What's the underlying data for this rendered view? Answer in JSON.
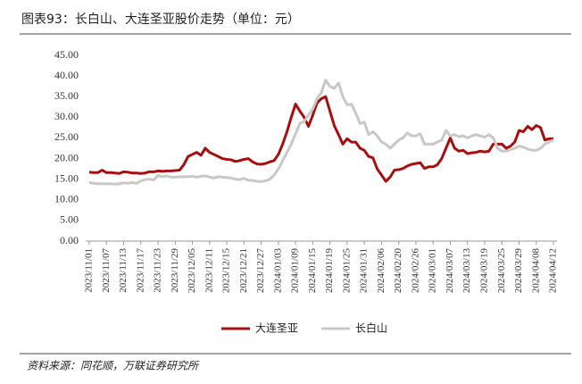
{
  "chart_data": {
    "type": "line",
    "title": "图表93：长白山、大连圣亚股价走势（单位：元）",
    "source": "资料来源：同花顺，万联证券研究所",
    "categories": [
      "2023/11/01",
      null,
      null,
      null,
      "2023/11/07",
      null,
      null,
      null,
      "2023/11/13",
      null,
      null,
      null,
      "2023/11/17",
      null,
      null,
      null,
      "2023/11/23",
      null,
      null,
      null,
      "2023/11/29",
      null,
      null,
      null,
      "2023/12/05",
      null,
      null,
      null,
      "2023/12/11",
      null,
      null,
      null,
      "2023/12/15",
      null,
      null,
      null,
      "2023/12/21",
      null,
      null,
      null,
      "2023/12/27",
      null,
      null,
      null,
      "2024/01/03",
      null,
      null,
      null,
      "2024/01/09",
      null,
      null,
      null,
      "2024/01/15",
      null,
      null,
      null,
      "2024/01/19",
      null,
      null,
      null,
      "2024/01/25",
      null,
      null,
      null,
      "2024/01/31",
      null,
      null,
      null,
      "2024/02/06",
      null,
      null,
      null,
      "2024/02/20",
      null,
      null,
      null,
      "2024/02/26",
      null,
      null,
      null,
      "2024/03/01",
      null,
      null,
      null,
      "2024/03/07",
      null,
      null,
      null,
      "2024/03/13",
      null,
      null,
      null,
      "2024/03/19",
      null,
      null,
      null,
      "2024/03/25",
      null,
      null,
      null,
      "2024/03/29",
      null,
      null,
      null,
      "2024/04/08",
      null,
      null,
      null,
      "2024/04/12"
    ],
    "series": [
      {
        "name": "大连圣亚",
        "color": "#a50f0f",
        "values": [
          16.7,
          16.6,
          16.6,
          17.2,
          16.6,
          16.6,
          16.5,
          16.4,
          16.8,
          16.7,
          16.5,
          16.5,
          16.4,
          16.5,
          16.8,
          16.8,
          17.0,
          16.9,
          17.0,
          17.0,
          17.1,
          17.2,
          18.5,
          20.5,
          21.0,
          21.5,
          20.8,
          22.5,
          21.5,
          21.0,
          20.5,
          20.0,
          19.8,
          19.7,
          19.3,
          19.5,
          19.8,
          20.0,
          19.2,
          18.7,
          18.6,
          18.8,
          19.2,
          19.5,
          21.0,
          23.5,
          26.5,
          30.0,
          33.2,
          31.5,
          30.0,
          27.8,
          30.5,
          33.5,
          34.5,
          35.0,
          31.5,
          28.0,
          25.8,
          23.5,
          24.8,
          24.0,
          24.0,
          22.5,
          22.0,
          20.5,
          20.2,
          17.5,
          16.0,
          14.5,
          15.5,
          17.2,
          17.3,
          17.6,
          18.2,
          18.6,
          18.8,
          19.0,
          17.6,
          18.0,
          18.0,
          18.5,
          20.0,
          22.5,
          25.0,
          22.5,
          21.8,
          22.0,
          21.2,
          21.4,
          21.5,
          21.8,
          21.6,
          21.8,
          23.5,
          23.5,
          23.5,
          22.5,
          23.0,
          24.0,
          26.8,
          26.5,
          27.8,
          27.0,
          28.0,
          27.5,
          24.5,
          24.8,
          24.8
        ]
      },
      {
        "name": "长白山",
        "color": "#c8c8c8",
        "values": [
          14.2,
          14.0,
          13.9,
          13.9,
          13.9,
          13.9,
          13.8,
          13.9,
          14.1,
          14.0,
          14.2,
          14.0,
          14.6,
          14.9,
          15.0,
          14.8,
          15.9,
          15.6,
          15.8,
          15.5,
          15.5,
          15.6,
          15.6,
          15.6,
          15.7,
          15.5,
          15.7,
          15.8,
          15.5,
          15.3,
          15.6,
          15.5,
          15.4,
          15.3,
          15.0,
          14.9,
          15.2,
          14.7,
          14.7,
          14.5,
          14.4,
          14.6,
          15.0,
          16.0,
          17.5,
          19.5,
          21.5,
          23.5,
          26.0,
          28.5,
          29.0,
          30.5,
          32.0,
          34.5,
          36.0,
          39.0,
          37.5,
          37.0,
          38.3,
          35.0,
          33.0,
          33.2,
          31.0,
          28.5,
          28.8,
          25.8,
          26.5,
          25.5,
          24.0,
          23.5,
          22.5,
          23.5,
          24.5,
          25.0,
          26.2,
          25.5,
          25.5,
          26.0,
          23.5,
          23.5,
          23.5,
          24.0,
          24.5,
          26.8,
          25.5,
          25.8,
          25.3,
          25.5,
          25.0,
          25.5,
          25.8,
          25.5,
          25.2,
          25.8,
          25.0,
          22.5,
          21.8,
          21.8,
          22.2,
          22.5,
          23.0,
          22.8,
          22.3,
          22.0,
          22.0,
          22.5,
          23.5,
          24.0,
          24.5
        ]
      }
    ],
    "ylim": [
      0,
      45
    ],
    "yticks": [
      {
        "value": 0,
        "label": "0.00"
      },
      {
        "value": 5,
        "label": "5.00"
      },
      {
        "value": 10,
        "label": "10.00"
      },
      {
        "value": 15,
        "label": "15.00"
      },
      {
        "value": 20,
        "label": "20.00"
      },
      {
        "value": 25,
        "label": "25.00"
      },
      {
        "value": 30,
        "label": "30.00"
      },
      {
        "value": 35,
        "label": "35.00"
      },
      {
        "value": 40,
        "label": "40.00"
      },
      {
        "value": 45,
        "label": "45.00"
      }
    ],
    "legend": "bottom"
  }
}
